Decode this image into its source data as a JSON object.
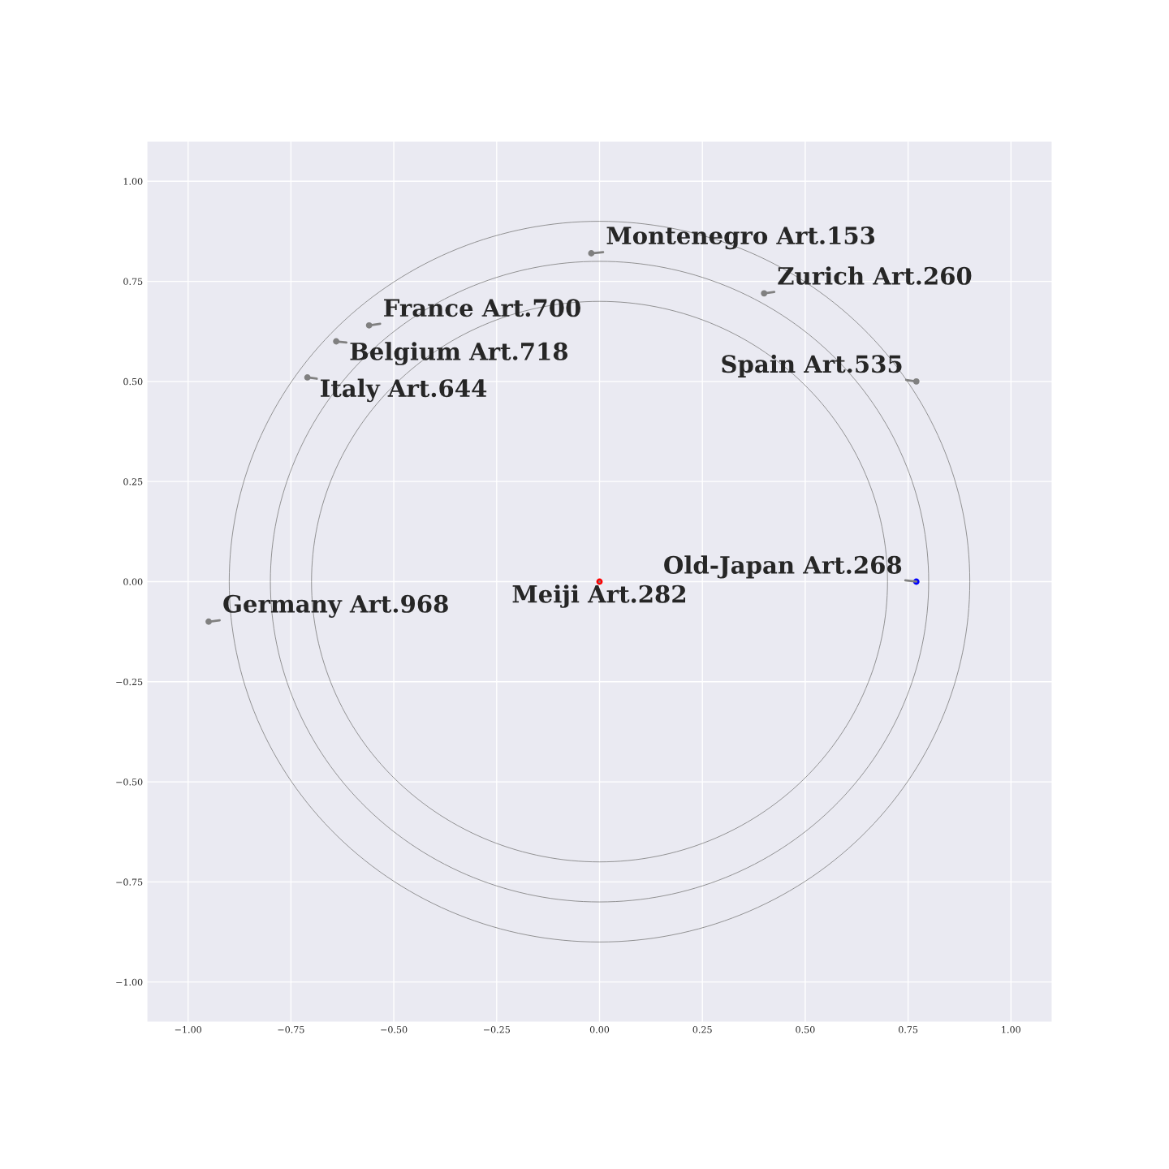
{
  "chart_data": {
    "type": "scatter",
    "grid": true,
    "xlim": [
      -1.1,
      1.1
    ],
    "ylim": [
      -1.1,
      1.1
    ],
    "xticks": [
      {
        "value": -1.0,
        "label": "−1.00"
      },
      {
        "value": -0.75,
        "label": "−0.75"
      },
      {
        "value": -0.5,
        "label": "−0.50"
      },
      {
        "value": -0.25,
        "label": "−0.25"
      },
      {
        "value": 0.0,
        "label": "0.00"
      },
      {
        "value": 0.25,
        "label": "0.25"
      },
      {
        "value": 0.5,
        "label": "0.50"
      },
      {
        "value": 0.75,
        "label": "0.75"
      },
      {
        "value": 1.0,
        "label": "1.00"
      }
    ],
    "yticks": [
      {
        "value": -1.0,
        "label": "−1.00"
      },
      {
        "value": -0.75,
        "label": "−0.75"
      },
      {
        "value": -0.5,
        "label": "−0.50"
      },
      {
        "value": -0.25,
        "label": "−0.25"
      },
      {
        "value": 0.0,
        "label": "0.00"
      },
      {
        "value": 0.25,
        "label": "0.25"
      },
      {
        "value": 0.5,
        "label": "0.50"
      },
      {
        "value": 0.75,
        "label": "0.75"
      },
      {
        "value": 1.0,
        "label": "1.00"
      }
    ],
    "series": [
      {
        "marker": "circle",
        "x": [
          -0.02,
          0.4,
          -0.56,
          -0.64,
          -0.71,
          0.77,
          0.77,
          0.0,
          -0.95
        ],
        "values": [
          0.82,
          0.72,
          0.64,
          0.6,
          0.51,
          0.5,
          0.0,
          0.0,
          -0.1
        ],
        "colors": [
          "#808080",
          "#808080",
          "#808080",
          "#808080",
          "#808080",
          "#808080",
          "#0000ff",
          "#ff0000",
          "#808080"
        ]
      }
    ],
    "annotations": [
      {
        "text": "Montenegro Art.153",
        "x": -0.02,
        "y": 0.82
      },
      {
        "text": "Zurich Art.260",
        "x": 0.4,
        "y": 0.72
      },
      {
        "text": "France Art.700",
        "x": -0.56,
        "y": 0.64
      },
      {
        "text": "Belgium Art.718",
        "x": -0.64,
        "y": 0.6
      },
      {
        "text": "Italy Art.644",
        "x": -0.71,
        "y": 0.51
      },
      {
        "text": "Spain Art.535",
        "x": 0.77,
        "y": 0.5
      },
      {
        "text": "Old-Japan Art.268",
        "x": 0.77,
        "y": 0.0
      },
      {
        "text": "Meiji Art.282",
        "x": 0.0,
        "y": 0.0
      },
      {
        "text": "Germany Art.968",
        "x": -0.95,
        "y": -0.1
      }
    ]
  }
}
